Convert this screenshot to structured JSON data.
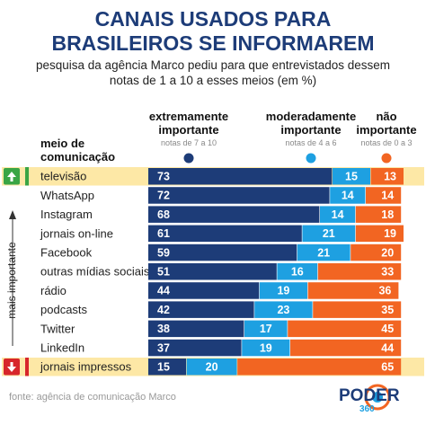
{
  "chart_data": {
    "type": "bar",
    "orientation": "horizontal",
    "stacked": true,
    "title": "CANAIS USADOS PARA BRASILEIROS SE INFORMAREM",
    "subtitle": "pesquisa da agência Marco pediu para que entrevistados dessem notas de 1 a 10 a esses meios (em %)",
    "category_header": "meio de comunicação",
    "side_label": "mais importante",
    "source": "fonte: agência de comunicação Marco",
    "logo": [
      "PODER",
      "360"
    ],
    "categories": [
      "televisão",
      "WhatsApp",
      "Instagram",
      "jornais on-line",
      "Facebook",
      "outras mídias sociais",
      "rádio",
      "podcasts",
      "Twitter",
      "LinkedIn",
      "jornais impressos"
    ],
    "highlighted": [
      0,
      10
    ],
    "series": [
      {
        "name": "extremamente importante",
        "note": "notas de 7 a 10",
        "color": "#1d3c78",
        "values": [
          73,
          72,
          68,
          61,
          59,
          51,
          44,
          42,
          38,
          37,
          15
        ]
      },
      {
        "name": "moderadamente importante",
        "note": "notas de 4 a 6",
        "color": "#1ea0e1",
        "values": [
          15,
          14,
          14,
          21,
          21,
          16,
          19,
          23,
          17,
          19,
          20
        ]
      },
      {
        "name": "não importante",
        "note": "notas de 0 a 3",
        "color": "#f26522",
        "values": [
          13,
          14,
          18,
          19,
          20,
          33,
          36,
          35,
          45,
          44,
          65
        ]
      }
    ]
  }
}
